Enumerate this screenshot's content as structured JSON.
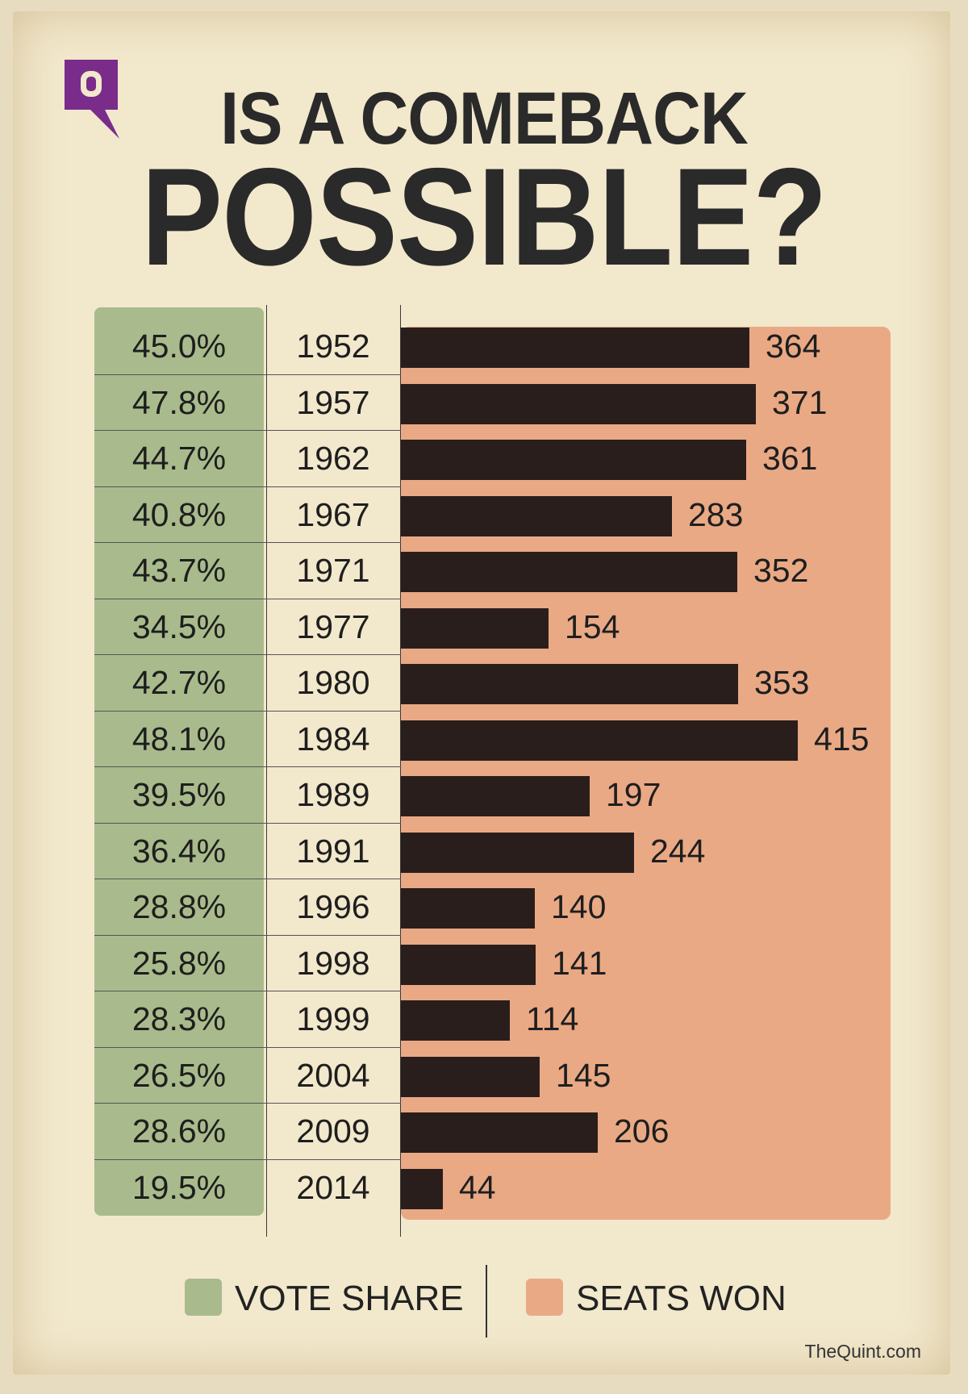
{
  "title": {
    "line1": "IS A COMEBACK",
    "line2": "POSSIBLE?"
  },
  "colors": {
    "vote_share": "#a9bb8c",
    "seats_won": "#e9a985",
    "bar": "#2a1e1c",
    "logo": "#7a2c8a"
  },
  "legend": {
    "vote_share": "VOTE SHARE",
    "seats_won": "SEATS WON"
  },
  "credit": "TheQuint.com",
  "chart_data": {
    "type": "bar",
    "categories": [
      "1952",
      "1957",
      "1962",
      "1967",
      "1971",
      "1977",
      "1980",
      "1984",
      "1989",
      "1991",
      "1996",
      "1998",
      "1999",
      "2004",
      "2009",
      "2014"
    ],
    "series": [
      {
        "name": "SEATS WON",
        "values": [
          364,
          371,
          361,
          283,
          352,
          154,
          353,
          415,
          197,
          244,
          140,
          141,
          114,
          145,
          206,
          44
        ]
      },
      {
        "name": "VOTE SHARE",
        "values": [
          "45.0%",
          "47.8%",
          "44.7%",
          "40.8%",
          "43.7%",
          "34.5%",
          "42.7%",
          "48.1%",
          "39.5%",
          "36.4%",
          "28.8%",
          "25.8%",
          "28.3%",
          "26.5%",
          "28.6%",
          "19.5%"
        ]
      }
    ],
    "orientation": "horizontal",
    "xlim": [
      0,
      415
    ],
    "legend_position": "bottom"
  }
}
